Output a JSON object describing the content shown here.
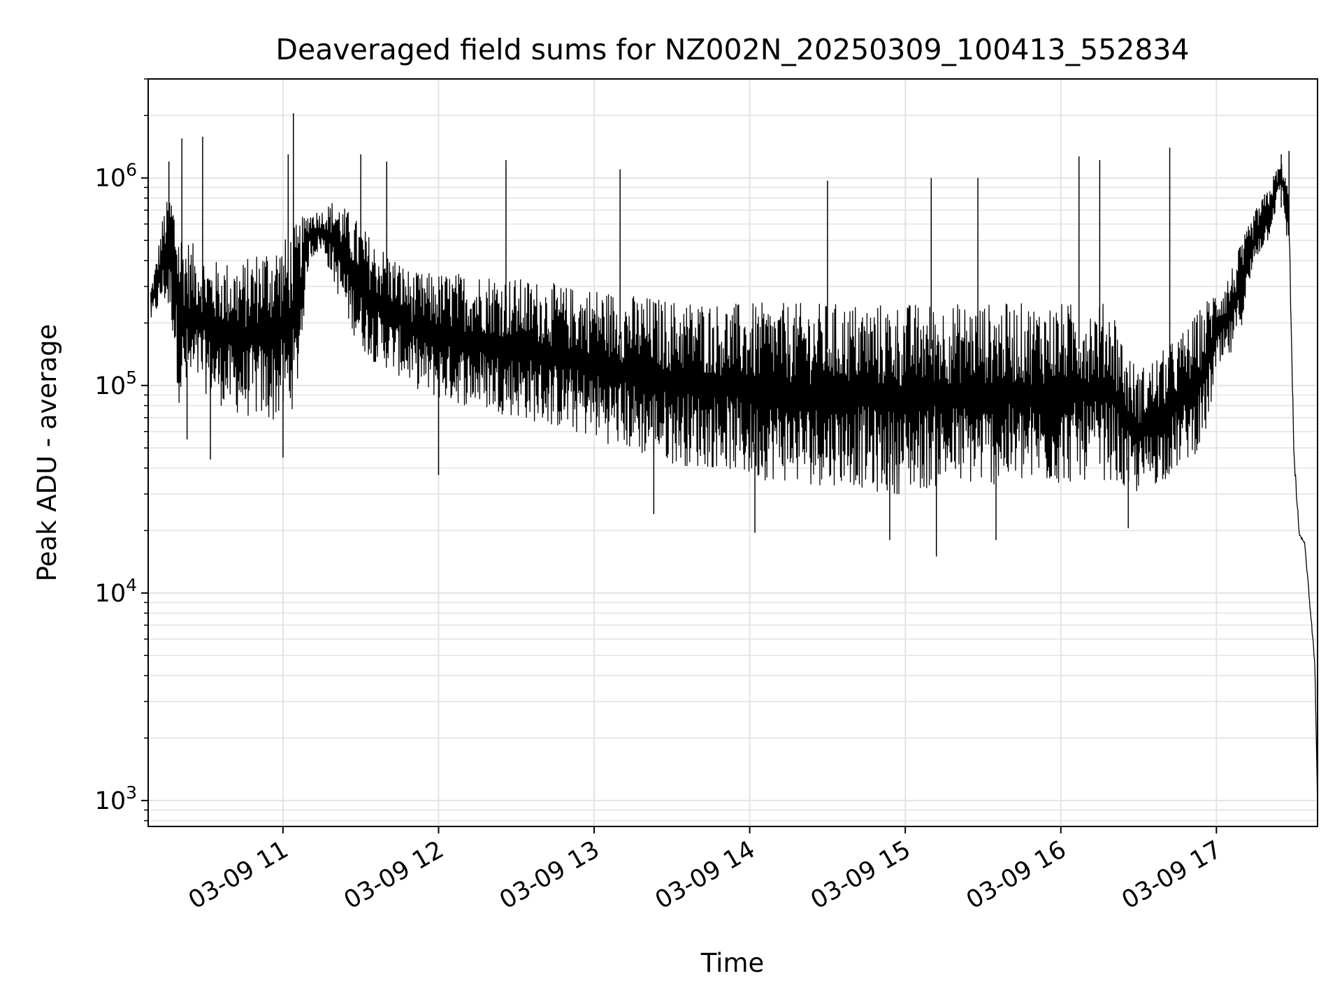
{
  "chart_data": {
    "type": "line",
    "title": "Deaveraged field sums for NZ002N_20250309_100413_552834",
    "xlabel": "Time",
    "ylabel": "Peak ADU - average",
    "yscale": "log",
    "ylim": [
      750,
      3000000
    ],
    "xlim": [
      "03-09 10:08",
      "03-09 17:39"
    ],
    "grid": true,
    "color": "#000000",
    "x_ticks": [
      {
        "value": "03-09 11:00",
        "label": "03-09 11"
      },
      {
        "value": "03-09 12:00",
        "label": "03-09 12"
      },
      {
        "value": "03-09 13:00",
        "label": "03-09 13"
      },
      {
        "value": "03-09 14:00",
        "label": "03-09 14"
      },
      {
        "value": "03-09 15:00",
        "label": "03-09 15"
      },
      {
        "value": "03-09 16:00",
        "label": "03-09 16"
      },
      {
        "value": "03-09 17:00",
        "label": "03-09 17"
      }
    ],
    "y_ticks": [
      {
        "value": 1000,
        "base": "10",
        "exp": "3"
      },
      {
        "value": 10000,
        "base": "10",
        "exp": "4"
      },
      {
        "value": 100000,
        "base": "10",
        "exp": "5"
      },
      {
        "value": 1000000,
        "base": "10",
        "exp": "6"
      }
    ],
    "series": [
      {
        "x": [
          "03-09 10:09",
          "03-09 10:11",
          "03-09 10:14",
          "03-09 10:17",
          "03-09 10:20",
          "03-09 10:24",
          "03-09 10:28",
          "03-09 10:32",
          "03-09 10:36",
          "03-09 10:40",
          "03-09 10:45",
          "03-09 10:50",
          "03-09 10:55",
          "03-09 11:00",
          "03-09 11:05",
          "03-09 11:10",
          "03-09 11:15",
          "03-09 11:20",
          "03-09 11:25",
          "03-09 11:30",
          "03-09 11:35",
          "03-09 11:40",
          "03-09 11:45",
          "03-09 11:50",
          "03-09 11:55",
          "03-09 12:00",
          "03-09 12:10",
          "03-09 12:20",
          "03-09 12:30",
          "03-09 12:40",
          "03-09 12:50",
          "03-09 13:00",
          "03-09 13:10",
          "03-09 13:20",
          "03-09 13:30",
          "03-09 13:40",
          "03-09 13:50",
          "03-09 14:00",
          "03-09 14:10",
          "03-09 14:20",
          "03-09 14:30",
          "03-09 14:40",
          "03-09 14:50",
          "03-09 15:00",
          "03-09 15:10",
          "03-09 15:20",
          "03-09 15:30",
          "03-09 15:40",
          "03-09 15:50",
          "03-09 16:00",
          "03-09 16:10",
          "03-09 16:20",
          "03-09 16:25",
          "03-09 16:30",
          "03-09 16:40",
          "03-09 16:50",
          "03-09 16:55",
          "03-09 17:00",
          "03-09 17:05",
          "03-09 17:10",
          "03-09 17:15",
          "03-09 17:20",
          "03-09 17:23",
          "03-09 17:25",
          "03-09 17:28",
          "03-09 17:30",
          "03-09 17:32",
          "03-09 17:34",
          "03-09 17:36",
          "03-09 17:38",
          "03-09 17:39"
        ],
        "low": [
          200000,
          220000,
          250000,
          200000,
          80000,
          90000,
          100000,
          85000,
          80000,
          75000,
          70000,
          70000,
          65000,
          70000,
          80000,
          400000,
          450000,
          300000,
          200000,
          150000,
          130000,
          120000,
          110000,
          100000,
          90000,
          85000,
          80000,
          75000,
          70000,
          65000,
          60000,
          55000,
          50000,
          45000,
          42000,
          40000,
          40000,
          35000,
          35000,
          33000,
          33000,
          33000,
          30000,
          30000,
          32000,
          33000,
          33000,
          33000,
          33000,
          33000,
          35000,
          35000,
          30000,
          30000,
          35000,
          45000,
          50000,
          110000,
          130000,
          200000,
          400000,
          500000,
          700000,
          900000,
          400000,
          30000,
          18000,
          17000,
          8000,
          4000,
          900
        ],
        "high": [
          300000,
          400000,
          700000,
          900000,
          600000,
          500000,
          450000,
          400000,
          400000,
          400000,
          400000,
          450000,
          500000,
          500000,
          600000,
          700000,
          700000,
          800000,
          700000,
          600000,
          500000,
          450000,
          400000,
          350000,
          350000,
          350000,
          350000,
          350000,
          330000,
          320000,
          300000,
          300000,
          280000,
          270000,
          260000,
          260000,
          250000,
          250000,
          250000,
          250000,
          250000,
          250000,
          250000,
          250000,
          250000,
          250000,
          250000,
          250000,
          250000,
          250000,
          250000,
          250000,
          150000,
          120000,
          150000,
          200000,
          250000,
          300000,
          350000,
          500000,
          700000,
          900000,
          1100000,
          1200000,
          900000,
          60000,
          20000,
          18000,
          10000,
          5000,
          1000
        ],
        "spikes": [
          {
            "x": "03-09 10:16",
            "y": 1200000
          },
          {
            "x": "03-09 10:21",
            "y": 1550000
          },
          {
            "x": "03-09 10:29",
            "y": 1580000
          },
          {
            "x": "03-09 11:04",
            "y": 2050000
          },
          {
            "x": "03-09 11:02",
            "y": 1300000
          },
          {
            "x": "03-09 11:30",
            "y": 1300000
          },
          {
            "x": "03-09 11:40",
            "y": 1200000
          },
          {
            "x": "03-09 12:26",
            "y": 1220000
          },
          {
            "x": "03-09 13:10",
            "y": 1100000
          },
          {
            "x": "03-09 14:30",
            "y": 970000
          },
          {
            "x": "03-09 15:10",
            "y": 1000000
          },
          {
            "x": "03-09 15:28",
            "y": 1000000
          },
          {
            "x": "03-09 16:07",
            "y": 1270000
          },
          {
            "x": "03-09 16:15",
            "y": 1220000
          },
          {
            "x": "03-09 16:42",
            "y": 1400000
          },
          {
            "x": "03-09 17:25",
            "y": 1300000
          },
          {
            "x": "03-09 17:28",
            "y": 1350000
          }
        ],
        "dips": [
          {
            "x": "03-09 10:23",
            "y": 55000
          },
          {
            "x": "03-09 10:32",
            "y": 44000
          },
          {
            "x": "03-09 11:00",
            "y": 45000
          },
          {
            "x": "03-09 12:00",
            "y": 37000
          },
          {
            "x": "03-09 13:23",
            "y": 24000
          },
          {
            "x": "03-09 14:02",
            "y": 19500
          },
          {
            "x": "03-09 14:54",
            "y": 18000
          },
          {
            "x": "03-09 15:12",
            "y": 15000
          },
          {
            "x": "03-09 15:35",
            "y": 18000
          },
          {
            "x": "03-09 16:26",
            "y": 20500
          }
        ]
      }
    ]
  }
}
